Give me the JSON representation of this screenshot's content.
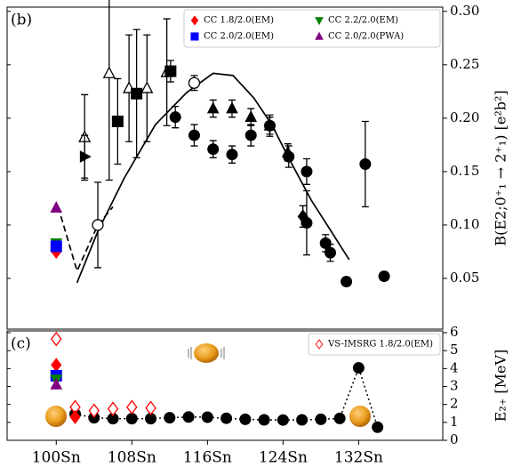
{
  "chart_data": [
    {
      "type": "scatter",
      "label": "(b)",
      "ylabel": "B(E2;0⁺₁ → 2⁺₁) [e²b²]",
      "xlim": [
        94.8,
        140.9
      ],
      "ylim": [
        0.0025,
        0.304
      ],
      "yticks": [
        {
          "value": 0.05,
          "label": "0.05"
        },
        {
          "value": 0.1,
          "label": "0.10"
        },
        {
          "value": 0.15,
          "label": "0.15"
        },
        {
          "value": 0.2,
          "label": "0.20"
        },
        {
          "value": 0.25,
          "label": "0.25"
        },
        {
          "value": 0.3,
          "label": "0.30"
        }
      ],
      "legend": "upper right",
      "series": [
        {
          "color": "#000000",
          "line": "solid",
          "x": [
            102.2,
            104.4,
            107.2,
            110.5,
            113.8,
            116.6,
            118.7,
            120.9,
            122.8,
            124.7,
            127.0,
            129.1,
            131.0
          ],
          "values": [
            0.046,
            0.094,
            0.144,
            0.194,
            0.224,
            0.242,
            0.24,
            0.219,
            0.194,
            0.161,
            0.123,
            0.094,
            0.0675
          ]
        },
        {
          "color": "#000000",
          "line": "dashed",
          "x": [
            100.2,
            102.2,
            104.4,
            106.0
          ],
          "values": [
            0.117,
            0.057,
            0.1,
            0.117
          ]
        },
        {
          "color": "#000000",
          "marker": "circle",
          "x": [
            112.6,
            114.6,
            116.6,
            118.6,
            120.6,
            122.6,
            124.6,
            126.5,
            126.5,
            128.5,
            129.0,
            130.7,
            132.7,
            134.7
          ],
          "values": [
            0.201,
            0.184,
            0.171,
            0.166,
            0.184,
            0.193,
            0.164,
            0.15,
            0.102,
            0.083,
            0.074,
            0.047,
            0.157,
            0.052
          ],
          "errors": [
            0.01,
            0.01,
            0.008,
            0.008,
            0.01,
            0.01,
            0.01,
            0.012,
            0.03,
            0.008,
            0.008,
            0.004,
            0.04,
            0.004
          ]
        },
        {
          "color": "#000000",
          "marker": "triangle",
          "x": [
            116.6,
            118.6,
            120.6,
            122.6,
            124.5
          ],
          "values": [
            0.209,
            0.209,
            0.201,
            0.193,
            0.168
          ],
          "errors": [
            0.008,
            0.008,
            0.008,
            0.008,
            0.008
          ]
        },
        {
          "color": "#000000",
          "marker": "open-triangle",
          "x": [
            103.0,
            105.6,
            107.7,
            109.6,
            111.7
          ],
          "values": [
            0.182,
            0.242,
            0.228,
            0.228,
            0.243
          ],
          "errors": [
            0.04,
            0.1,
            0.05,
            0.05,
            0.05
          ]
        },
        {
          "color": "#000000",
          "marker": "open-circle",
          "x": [
            104.4,
            114.6
          ],
          "values": [
            0.1,
            0.233
          ],
          "errors": [
            0.04,
            0.007
          ]
        },
        {
          "color": "#000000",
          "marker": "square",
          "x": [
            106.5,
            108.5,
            112.1
          ],
          "values": [
            0.197,
            0.223,
            0.244
          ],
          "errors": [
            0.04,
            0.06,
            0.01
          ]
        },
        {
          "color": "#000000",
          "marker": "right-triangle",
          "x": [
            103.0
          ],
          "values": [
            0.164
          ],
          "errors": [
            0.02
          ]
        },
        {
          "color": "#000000",
          "marker": "diamond",
          "x": [
            126.1
          ],
          "values": [
            0.108
          ],
          "errors": [
            0.01
          ]
        },
        {
          "name": "CC 1.8/2.0(EM)",
          "color": "#ff0000",
          "marker": "diamond",
          "x": [
            100
          ],
          "values": [
            0.075
          ]
        },
        {
          "name": "CC 2.2/2.0(EM)",
          "color": "#008000",
          "marker": "down-triangle",
          "x": [
            100
          ],
          "values": [
            0.083
          ]
        },
        {
          "name": "CC 2.0/2.0(EM)",
          "color": "#0000ff",
          "marker": "square",
          "x": [
            100
          ],
          "values": [
            0.08
          ]
        },
        {
          "name": "CC 2.0/2.0(PWA)",
          "color": "#800080",
          "marker": "triangle",
          "x": [
            100
          ],
          "values": [
            0.116
          ]
        }
      ]
    },
    {
      "type": "scatter",
      "label": "(c)",
      "ylabel": "E₂₊ [MeV]",
      "xlim": [
        94.8,
        140.9
      ],
      "ylim": [
        0,
        6.1
      ],
      "yticks": [
        0,
        1,
        2,
        3,
        4,
        5,
        6
      ],
      "xticks": [
        {
          "value": 100,
          "label": "100Sn"
        },
        {
          "value": 108,
          "label": "108Sn"
        },
        {
          "value": 116,
          "label": "116Sn"
        },
        {
          "value": 124,
          "label": "124Sn"
        },
        {
          "value": 132,
          "label": "132Sn"
        }
      ],
      "legend": "upper right",
      "series": [
        {
          "color": "#000000",
          "line": "dotted",
          "marker": "circle",
          "x": [
            102,
            104,
            106,
            108,
            110,
            112,
            114,
            116,
            118,
            120,
            122,
            124,
            126,
            128,
            130,
            132,
            134
          ],
          "values": [
            1.47,
            1.26,
            1.21,
            1.21,
            1.21,
            1.26,
            1.3,
            1.29,
            1.23,
            1.17,
            1.14,
            1.13,
            1.14,
            1.17,
            1.22,
            4.04,
            0.73
          ]
        },
        {
          "name": "VS-IMSRG 1.8/2.0(EM)",
          "color": "#ff0000",
          "marker": "open-diamond",
          "x": [
            100,
            102,
            104,
            106,
            108,
            110
          ],
          "values": [
            5.65,
            1.85,
            1.65,
            1.75,
            1.85,
            1.8
          ]
        },
        {
          "color": "#ff0000",
          "marker": "diamond",
          "x": [
            100,
            102
          ],
          "values": [
            4.2,
            1.3
          ]
        },
        {
          "color": "#0000ff",
          "marker": "square",
          "x": [
            100
          ],
          "values": [
            3.6
          ]
        },
        {
          "color": "#008000",
          "marker": "down-triangle",
          "x": [
            100
          ],
          "values": [
            3.4
          ]
        },
        {
          "color": "#800080",
          "marker": "triangle",
          "x": [
            100
          ],
          "values": [
            3.1
          ]
        }
      ]
    }
  ]
}
